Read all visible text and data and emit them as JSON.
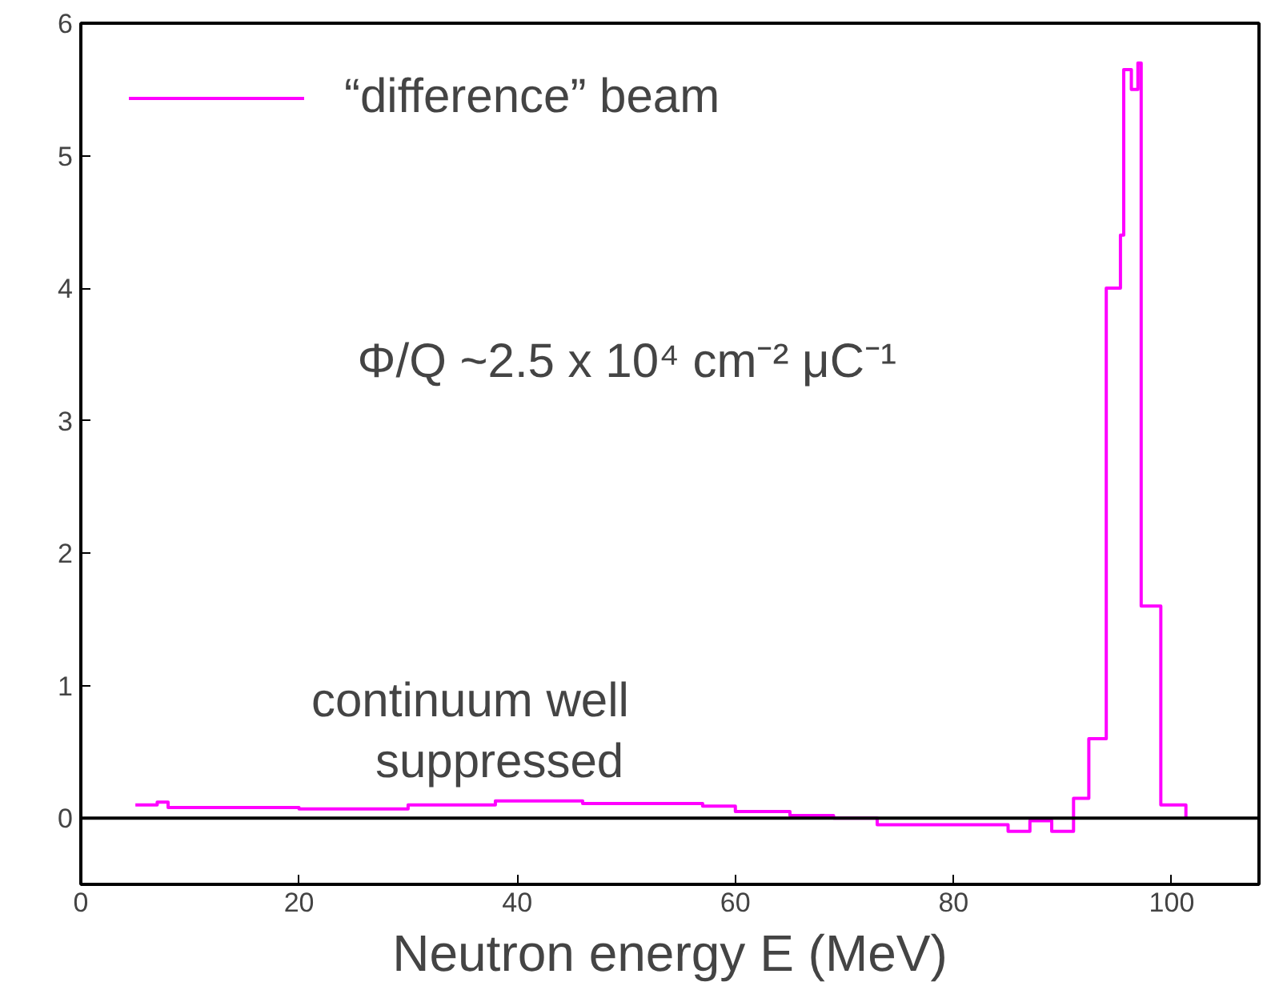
{
  "chart_data": {
    "type": "step",
    "xlabel": "Neutron energy E (MeV)",
    "xlim": [
      0,
      108
    ],
    "xticks": [
      0,
      20,
      40,
      60,
      80,
      100
    ],
    "ylim": [
      -0.5,
      6
    ],
    "yticks": [
      0,
      1,
      2,
      3,
      4,
      5,
      6
    ],
    "legend": "top left",
    "series": [
      {
        "name": "“difference” beam",
        "color": "#ff00ff",
        "x": [
          5,
          7,
          8,
          20,
          30,
          38,
          46,
          57,
          60,
          65,
          69,
          73,
          85,
          87,
          89,
          91,
          92.4,
          94,
          95.3,
          95.6,
          96.3,
          96.9,
          97.2,
          99,
          101.3
        ],
        "values": [
          0.1,
          0.12,
          0.08,
          0.07,
          0.1,
          0.13,
          0.11,
          0.09,
          0.05,
          0.02,
          0.0,
          -0.05,
          -0.1,
          -0.02,
          -0.1,
          0.15,
          0.6,
          4.0,
          4.4,
          5.65,
          5.5,
          5.7,
          1.6,
          0.1,
          0.0
        ]
      }
    ],
    "ref_lines": [
      {
        "axis": "y",
        "value": 0,
        "color": "#000000"
      }
    ],
    "annotations": [
      "Φ/Q ~2.5 x 10⁴ cm⁻² μC⁻¹",
      "continuum well\nsuppressed"
    ]
  }
}
